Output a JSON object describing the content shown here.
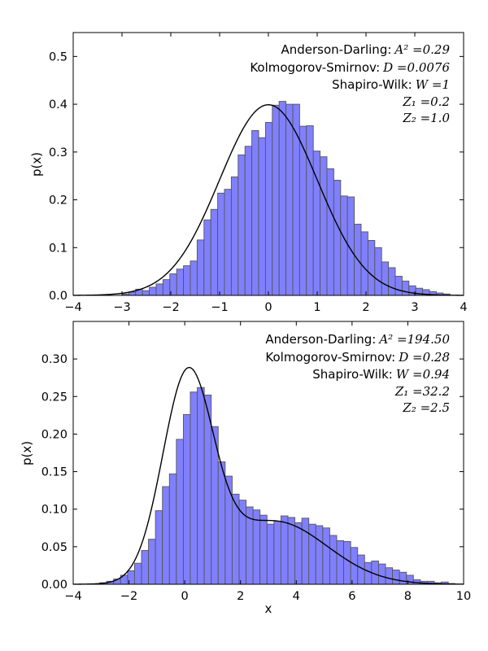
{
  "chart_data": [
    {
      "type": "histogram",
      "xlabel": "",
      "ylabel": "p(x)",
      "xlim": [
        -4,
        4
      ],
      "ylim": [
        0,
        0.55
      ],
      "xticks": [
        -4,
        -3,
        -2,
        -1,
        0,
        1,
        2,
        3,
        4
      ],
      "xtick_labels": [
        "−4",
        "−3",
        "−2",
        "−1",
        "0",
        "1",
        "2",
        "3",
        "4"
      ],
      "yticks": [
        0.0,
        0.1,
        0.2,
        0.3,
        0.4,
        0.5
      ],
      "ytick_labels": [
        "0.0",
        "0.1",
        "0.2",
        "0.3",
        "0.4",
        "0.5"
      ],
      "bin_start": -3.0,
      "bin_width": 0.14,
      "bin_values": [
        0.003,
        0.007,
        0.013,
        0.01,
        0.017,
        0.024,
        0.033,
        0.045,
        0.055,
        0.062,
        0.072,
        0.116,
        0.158,
        0.18,
        0.214,
        0.222,
        0.248,
        0.294,
        0.312,
        0.345,
        0.33,
        0.362,
        0.398,
        0.406,
        0.4,
        0.4,
        0.354,
        0.355,
        0.302,
        0.29,
        0.265,
        0.241,
        0.208,
        0.206,
        0.149,
        0.133,
        0.115,
        0.1,
        0.07,
        0.058,
        0.04,
        0.03,
        0.02,
        0.015,
        0.012,
        0.008,
        0.005,
        0.003
      ],
      "curve": {
        "type": "gaussian",
        "mean": 0.0,
        "sigma": 1.0
      },
      "stats": {
        "anderson_darling": {
          "label": "Anderson-Darling:",
          "math": "A² =0.29"
        },
        "kolmogorov_smirnov": {
          "label": "Kolmogorov-Smirnov:",
          "math": "D =0.0076"
        },
        "shapiro_wilk": {
          "label": "Shapiro-Wilk:",
          "math": "W =1"
        },
        "z1": "Z₁ =0.2",
        "z2": "Z₂ =1.0"
      },
      "grid": false
    },
    {
      "type": "histogram",
      "xlabel": "x",
      "ylabel": "p(x)",
      "xlim": [
        -4,
        10
      ],
      "ylim": [
        0,
        0.35
      ],
      "xticks": [
        -4,
        -2,
        0,
        2,
        4,
        6,
        8,
        10
      ],
      "xtick_labels": [
        "−4",
        "−2",
        "0",
        "2",
        "4",
        "6",
        "8",
        "10"
      ],
      "yticks": [
        0.0,
        0.05,
        0.1,
        0.15,
        0.2,
        0.25,
        0.3
      ],
      "ytick_labels": [
        "0.00",
        "0.05",
        "0.10",
        "0.15",
        "0.20",
        "0.25",
        "0.30"
      ],
      "bin_start": -3.05,
      "bin_width": 0.25,
      "bin_values": [
        0.002,
        0.004,
        0.007,
        0.012,
        0.018,
        0.028,
        0.045,
        0.06,
        0.098,
        0.13,
        0.147,
        0.193,
        0.226,
        0.256,
        0.262,
        0.252,
        0.21,
        0.163,
        0.144,
        0.12,
        0.112,
        0.103,
        0.099,
        0.092,
        0.08,
        0.084,
        0.091,
        0.089,
        0.082,
        0.088,
        0.08,
        0.078,
        0.075,
        0.065,
        0.058,
        0.057,
        0.049,
        0.039,
        0.029,
        0.031,
        0.027,
        0.022,
        0.019,
        0.016,
        0.012,
        0.006,
        0.004,
        0.004,
        0.002,
        0.003,
        0.001
      ],
      "curve": {
        "type": "gaussian_mixture",
        "components": [
          {
            "weight": 0.6,
            "mean": 0.1,
            "sigma": 0.9
          },
          {
            "weight": 0.4,
            "mean": 3.2,
            "sigma": 1.9
          }
        ]
      },
      "stats": {
        "anderson_darling": {
          "label": "Anderson-Darling:",
          "math": "A² =194.50"
        },
        "kolmogorov_smirnov": {
          "label": "Kolmogorov-Smirnov:",
          "math": "D =0.28"
        },
        "shapiro_wilk": {
          "label": "Shapiro-Wilk:",
          "math": "W =0.94"
        },
        "z1": "Z₁ =32.2",
        "z2": "Z₂ =2.5"
      },
      "grid": false
    }
  ]
}
